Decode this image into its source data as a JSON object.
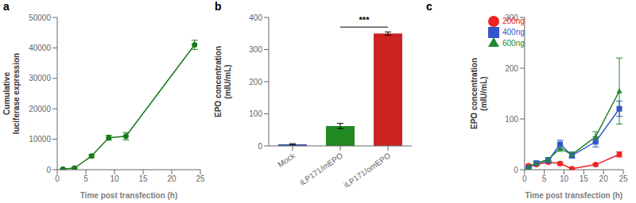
{
  "chart_data": [
    {
      "type": "line",
      "title": "a",
      "xlabel": "Time post transfection (h)",
      "ylabel": "Cumulative\nluciferase expression",
      "x": [
        1,
        3,
        6,
        9,
        12,
        24
      ],
      "values": [
        200,
        500,
        4500,
        10500,
        11000,
        41000
      ],
      "yerr": [
        100,
        200,
        500,
        800,
        1200,
        1500
      ],
      "color": "#1a7a1a",
      "marker": "circle",
      "xlim": [
        0,
        25
      ],
      "xticks": [
        0,
        5,
        10,
        15,
        20,
        25
      ],
      "ylim": [
        0,
        50000
      ],
      "yticks": [
        0,
        10000,
        20000,
        30000,
        40000,
        50000
      ],
      "grid": false
    },
    {
      "type": "bar",
      "title": "b",
      "ylabel": "EPO concentration\n(mIU/mL)",
      "categories": [
        "Mock",
        "iLP171/mEPO",
        "iLP171/omEPO"
      ],
      "values": [
        5,
        62,
        350
      ],
      "yerr": [
        2,
        8,
        5
      ],
      "colors": [
        "#3355aa",
        "#228822",
        "#cc2222"
      ],
      "ylim": [
        0,
        400
      ],
      "yticks": [
        0,
        100,
        200,
        300,
        400
      ],
      "grid": false,
      "annotations": [
        {
          "text": "***",
          "x": [
            "iLP171/mEPO",
            "iLP171/omEPO"
          ],
          "y": 370
        }
      ]
    },
    {
      "type": "line",
      "title": "c",
      "xlabel": "Time post transfection (h)",
      "ylabel": "EPO concentration\n(mIU/mL)",
      "x": [
        1,
        3,
        6,
        9,
        12,
        18,
        24
      ],
      "series": [
        {
          "name": "200ng",
          "color": "#ee2222",
          "marker": "circle",
          "values": [
            8,
            10,
            15,
            12,
            2,
            10,
            30
          ],
          "yerr": [
            2,
            2,
            3,
            3,
            2,
            2,
            5
          ]
        },
        {
          "name": "400ng",
          "color": "#3355cc",
          "marker": "square",
          "values": [
            3,
            13,
            18,
            50,
            28,
            55,
            120
          ],
          "yerr": [
            1,
            3,
            4,
            8,
            5,
            10,
            15
          ]
        },
        {
          "name": "600ng",
          "color": "#228833",
          "marker": "triangle",
          "values": [
            5,
            13,
            20,
            42,
            30,
            65,
            155
          ],
          "yerr": [
            2,
            3,
            4,
            6,
            5,
            10,
            65
          ]
        }
      ],
      "xlim": [
        0,
        25
      ],
      "xticks": [
        0,
        5,
        10,
        15,
        20,
        25
      ],
      "ylim": [
        0,
        300
      ],
      "yticks": [
        0,
        100,
        200,
        300
      ],
      "grid": false,
      "legend": "upper left"
    }
  ]
}
